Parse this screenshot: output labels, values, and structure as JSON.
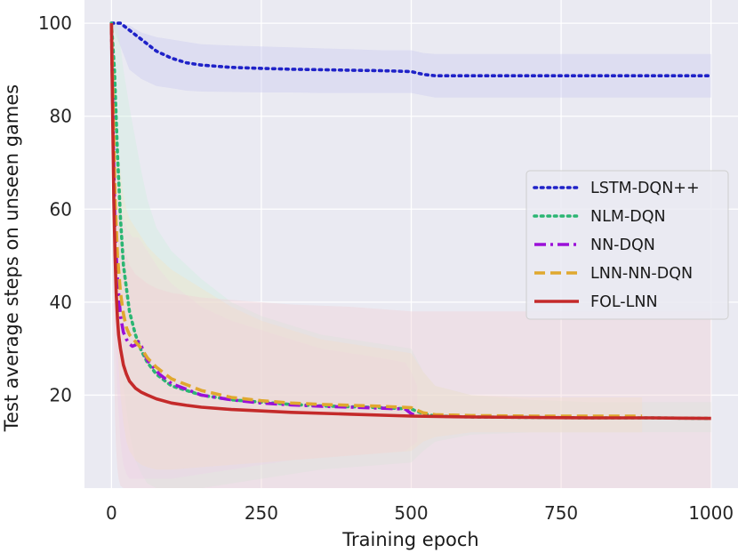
{
  "chart_data": {
    "type": "line",
    "title": "",
    "xlabel": "Training epoch",
    "ylabel": "Test average steps on unseen games",
    "xlim": [
      -45,
      1045
    ],
    "ylim": [
      0,
      105
    ],
    "xticks": [
      0,
      250,
      500,
      750,
      1000
    ],
    "yticks": [
      20,
      40,
      60,
      80,
      100
    ],
    "grid": true,
    "background": "#eaeaf2",
    "legend_position": "center-right",
    "series": [
      {
        "name": "LSTM-DQN++",
        "color": "#1f22c8",
        "style": "dotted",
        "band_color": "#c9c9f0",
        "x": [
          0,
          15,
          30,
          50,
          75,
          100,
          125,
          150,
          200,
          250,
          300,
          350,
          400,
          450,
          500,
          520,
          540,
          600,
          700,
          800,
          900,
          1000
        ],
        "y": [
          100,
          100,
          98.5,
          96.5,
          94,
          92.5,
          91.5,
          91,
          90.5,
          90.3,
          90.1,
          90,
          89.9,
          89.8,
          89.6,
          89,
          88.7,
          88.7,
          88.7,
          88.7,
          88.7,
          88.7
        ],
        "band_lower": [
          100,
          95,
          90,
          88,
          86.5,
          86,
          85.5,
          85.3,
          85.2,
          85.1,
          85.1,
          85,
          85,
          85,
          85,
          84.5,
          84,
          84,
          84,
          84,
          84,
          84
        ],
        "band_upper": [
          100,
          100,
          99.5,
          98,
          97,
          96.5,
          96,
          95.5,
          95.2,
          95,
          94.8,
          94.6,
          94.4,
          94.2,
          94.2,
          93.6,
          93.4,
          93.4,
          93.4,
          93.4,
          93.4,
          93.4
        ]
      },
      {
        "name": "NLM-DQN",
        "color": "#2bb673",
        "style": "dotted",
        "band_color": "#cdeedd",
        "x": [
          0,
          5,
          10,
          15,
          20,
          30,
          40,
          50,
          60,
          75,
          100,
          150,
          200,
          250,
          300,
          350,
          400,
          450,
          500,
          520,
          540,
          600,
          700,
          800,
          900,
          1000
        ],
        "y": [
          100,
          90,
          72,
          58,
          48,
          38,
          33,
          29.5,
          27,
          24.5,
          22,
          20,
          19,
          18.5,
          18,
          17.7,
          17.5,
          17.3,
          17,
          16,
          15.5,
          15.3,
          15.2,
          15.1,
          15.1,
          15
        ],
        "band_lower": [
          100,
          75,
          50,
          35,
          22,
          12,
          6,
          3,
          1,
          0,
          0,
          0,
          1,
          2,
          3,
          4,
          4.5,
          5,
          5.5,
          8,
          10,
          11.5,
          12,
          12,
          12,
          12
        ],
        "band_upper": [
          100,
          100,
          100,
          95,
          90,
          82,
          75,
          68,
          62,
          56,
          51,
          45,
          40,
          37,
          35,
          33,
          32,
          31,
          30,
          25,
          22,
          20,
          19,
          18.5,
          18.5,
          18.5
        ]
      },
      {
        "name": "NN-DQN",
        "color": "#9b10d8",
        "style": "dashdot",
        "band_color": "#e9d2f5",
        "x": [
          0,
          3,
          6,
          10,
          15,
          20,
          25,
          30,
          35,
          40,
          45,
          50,
          55,
          60,
          70,
          80,
          100,
          150,
          200,
          250,
          300,
          350,
          400,
          450,
          490,
          500,
          510
        ],
        "y": [
          100,
          75,
          55,
          45,
          37,
          33.5,
          32,
          31,
          30.5,
          30.8,
          31.5,
          30.5,
          29,
          27.5,
          26,
          24.5,
          22.5,
          20,
          19,
          18.3,
          17.9,
          17.6,
          17.4,
          17.2,
          17,
          16,
          15.5
        ],
        "band_lower": [
          100,
          60,
          35,
          20,
          10,
          5,
          3,
          2,
          2,
          2,
          2,
          2,
          2,
          2,
          2,
          2,
          2,
          3,
          4,
          5,
          6,
          6.5,
          7,
          7.5,
          8,
          9,
          10
        ],
        "band_upper": [
          100,
          95,
          80,
          70,
          62,
          58,
          56,
          55,
          54,
          54,
          54,
          53,
          52,
          51,
          49,
          47,
          44,
          39,
          36,
          34,
          32,
          30,
          29,
          28,
          27,
          25,
          22
        ]
      },
      {
        "name": "LNN-NN-DQN",
        "color": "#e0a82e",
        "style": "dashed",
        "band_color": "#f5e6c2",
        "x": [
          0,
          3,
          6,
          10,
          15,
          20,
          25,
          30,
          40,
          50,
          60,
          75,
          100,
          150,
          200,
          250,
          300,
          350,
          400,
          450,
          500,
          520,
          540,
          600,
          700,
          800,
          885
        ],
        "y": [
          100,
          80,
          62,
          50,
          42,
          37.5,
          34.5,
          33,
          31.5,
          30,
          28,
          26,
          23.5,
          21,
          19.5,
          18.8,
          18.3,
          18,
          17.8,
          17.6,
          17.3,
          16.2,
          15.8,
          15.6,
          15.5,
          15.5,
          15.5
        ],
        "band_lower": [
          100,
          70,
          45,
          30,
          20,
          14,
          10,
          8,
          6,
          5,
          4.5,
          4,
          4,
          4.5,
          5,
          5.5,
          6,
          6.5,
          7,
          7.5,
          8,
          10,
          11,
          12,
          12,
          12,
          12
        ],
        "band_upper": [
          100,
          95,
          85,
          75,
          68,
          63,
          60,
          58,
          56,
          54,
          52,
          50,
          47,
          43,
          39,
          36,
          34,
          32,
          31,
          30,
          29,
          25,
          22,
          20,
          19.5,
          19.5,
          19.5
        ]
      },
      {
        "name": "FOL-LNN",
        "color": "#c42a2a",
        "style": "solid",
        "band_color": "#f2cfd6",
        "x": [
          0,
          2,
          4,
          6,
          8,
          10,
          12,
          15,
          20,
          25,
          30,
          40,
          50,
          60,
          75,
          100,
          125,
          150,
          200,
          250,
          300,
          400,
          500,
          600,
          700,
          800,
          900,
          1000
        ],
        "y": [
          100,
          80,
          62,
          50,
          42,
          36.5,
          33,
          30,
          26.5,
          24.5,
          23,
          21.5,
          20.6,
          20,
          19.2,
          18.3,
          17.8,
          17.4,
          16.9,
          16.6,
          16.3,
          15.9,
          15.5,
          15.3,
          15.2,
          15.1,
          15.1,
          15
        ],
        "band_lower": [
          100,
          55,
          30,
          15,
          8,
          4,
          2,
          0.5,
          0,
          0,
          0,
          0,
          0,
          0,
          0,
          0,
          0,
          0,
          0,
          0,
          0,
          0,
          0,
          0,
          0,
          0,
          0,
          0
        ],
        "band_upper": [
          100,
          100,
          95,
          85,
          75,
          68,
          63,
          58,
          53,
          50,
          48,
          46,
          45,
          44,
          43,
          42,
          41.5,
          41,
          40.5,
          40,
          39.5,
          39,
          38,
          38,
          38,
          38,
          38,
          38
        ]
      }
    ]
  }
}
